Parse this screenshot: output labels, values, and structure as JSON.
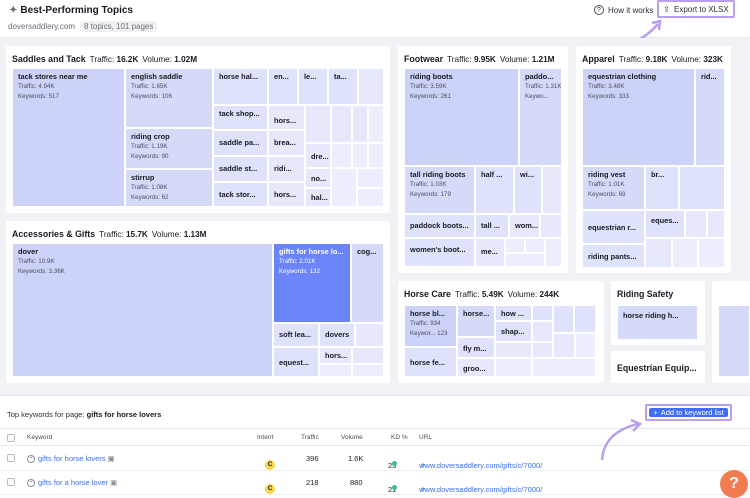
{
  "header": {
    "title": "Best-Performing Topics",
    "domain": "doversaddlery.com",
    "summary": "8 topics, 101 pages",
    "how_label": "How it works",
    "export_label": "Export to XLSX"
  },
  "panels": {
    "saddles": {
      "name": "Saddles and Tack",
      "traffic_label": "Traffic:",
      "traffic": "16.2K",
      "volume_label": "Volume:",
      "volume": "1.02M"
    },
    "footwear": {
      "name": "Footwear",
      "traffic_label": "Traffic:",
      "traffic": "9.95K",
      "volume_label": "Volume:",
      "volume": "1.21M"
    },
    "apparel": {
      "name": "Apparel",
      "traffic_label": "Traffic:",
      "traffic": "9.18K",
      "volume_label": "Volume:",
      "volume": "323K"
    },
    "accessories": {
      "name": "Accessories & Gifts",
      "traffic_label": "Traffic:",
      "traffic": "15.7K",
      "volume_label": "Volume:",
      "volume": "1.13M"
    },
    "horsecare": {
      "name": "Horse Care",
      "traffic_label": "Traffic:",
      "traffic": "5.49K",
      "volume_label": "Volume:",
      "volume": "244K"
    },
    "riding": {
      "name": "Riding Safety"
    },
    "equip": {
      "name": "Equestrian Equip..."
    }
  },
  "cells": {
    "s1": {
      "t": "tack stores near me",
      "a": "Traffic: 4.94K",
      "b": "Keywords: 517"
    },
    "s2": {
      "t": "english saddle",
      "a": "Traffic: 1.65K",
      "b": "Keywords: 106"
    },
    "s3": {
      "t": "riding crop",
      "a": "Traffic: 1.19K",
      "b": "Keywords: 90"
    },
    "s4": {
      "t": "stirrup",
      "a": "Traffic: 1.08K",
      "b": "Keywords: 62"
    },
    "s5": {
      "t": "horse hal..."
    },
    "s6": {
      "t": "en..."
    },
    "s7": {
      "t": "le..."
    },
    "s8": {
      "t": "ta..."
    },
    "s9": {
      "t": "tack shop..."
    },
    "s10": {
      "t": "hors..."
    },
    "s11": {
      "t": "saddle pa..."
    },
    "s12": {
      "t": "brea..."
    },
    "s13": {
      "t": "dre..."
    },
    "s14": {
      "t": "saddle st..."
    },
    "s15": {
      "t": "ridi..."
    },
    "s16": {
      "t": "no..."
    },
    "s17": {
      "t": "tack stor..."
    },
    "s18": {
      "t": "hors..."
    },
    "s19": {
      "t": "hal..."
    },
    "f1": {
      "t": "riding boots",
      "a": "Traffic: 3.59K",
      "b": "Keywords: 261"
    },
    "f2": {
      "t": "paddo...",
      "a": "Traffic: 1.31K",
      "b": "Keywo..."
    },
    "f3": {
      "t": "tall riding boots",
      "a": "Traffic: 1.03K",
      "b": "Keywords: 179"
    },
    "f4": {
      "t": "half ..."
    },
    "f5": {
      "t": "wi..."
    },
    "f6": {
      "t": "paddock boots..."
    },
    "f7": {
      "t": "tall ..."
    },
    "f8": {
      "t": "wom..."
    },
    "f9": {
      "t": "women's boot..."
    },
    "f10": {
      "t": "me..."
    },
    "p1": {
      "t": "equestrian clothing",
      "a": "Traffic: 3.48K",
      "b": "Keywords: 333"
    },
    "p2": {
      "t": "rid..."
    },
    "p3": {
      "t": "riding vest",
      "a": "Traffic: 1.01K",
      "b": "Keywords: 69"
    },
    "p4": {
      "t": "br..."
    },
    "p5": {
      "t": "eques..."
    },
    "p6": {
      "t": "equestrian r..."
    },
    "p7": {
      "t": "riding pants..."
    },
    "a1": {
      "t": "dover",
      "a": "Traffic: 10.9K",
      "b": "Keywords: 3.36K"
    },
    "a2": {
      "t": "gifts for horse lo...",
      "a": "Traffic: 2.01K",
      "b": "Keywords: 132"
    },
    "a3": {
      "t": "cog..."
    },
    "a4": {
      "t": "soft lea..."
    },
    "a5": {
      "t": "dovers"
    },
    "a6": {
      "t": "hors..."
    },
    "a7": {
      "t": "equest..."
    },
    "h1": {
      "t": "horse bl...",
      "a": "Traffic: 934",
      "b": "Keywor... 123"
    },
    "h2": {
      "t": "horse..."
    },
    "h3": {
      "t": "how ..."
    },
    "h4": {
      "t": "shap..."
    },
    "h5": {
      "t": "fly m..."
    },
    "h6": {
      "t": "horse fe..."
    },
    "h7": {
      "t": "groo..."
    },
    "r1": {
      "t": "horse riding h..."
    }
  },
  "bottom": {
    "prefix": "Top keywords for page:",
    "page": "gifts for horse lovers",
    "add_label": "Add to keyword list",
    "columns": {
      "keyword": "Keyword",
      "intent": "Intent",
      "traffic": "Traffic",
      "volume": "Volume",
      "kd": "KD %",
      "url": "URL"
    },
    "rows": [
      {
        "keyword": "gifts for horse lovers",
        "intent": "C",
        "traffic": "396",
        "volume": "1.6K",
        "kd": "25",
        "url": "www.doversaddlery.com/gifts/c/7000/"
      },
      {
        "keyword": "gifts for a horse lover",
        "intent": "C",
        "traffic": "218",
        "volume": "880",
        "kd": "21",
        "url": "www.doversaddlery.com/gifts/c/7000/"
      }
    ]
  },
  "colors": {
    "accent": "#3f6ef2",
    "selected": "#6b85f8",
    "highlight": "#b99ef0",
    "help": "#f27c52"
  }
}
